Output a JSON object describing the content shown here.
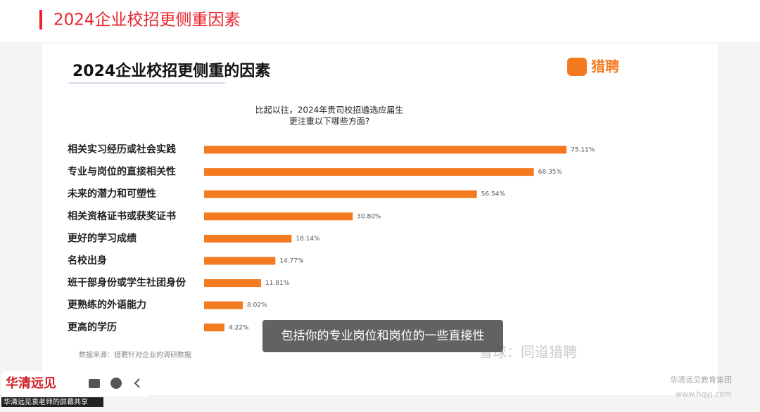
{
  "header": {
    "title": "2024企业校招更侧重因素"
  },
  "chart_data": {
    "type": "hbar",
    "title": "2024企业校招更侧重的因素",
    "question": [
      "比起以往，2024年贵司校招遴选应届生",
      "更注重以下哪些方面?"
    ],
    "categories": [
      "相关实习经历或社会实践",
      "专业与岗位的直接相关性",
      "未来的潜力和可塑性",
      "相关资格证书或获奖证书",
      "更好的学习成绩",
      "名校出身",
      "班干部身份或学生社团身份",
      "更熟练的外语能力",
      "更高的学历"
    ],
    "values": [
      75.11,
      68.35,
      56.54,
      30.8,
      18.14,
      14.77,
      11.81,
      8.02,
      4.22
    ],
    "value_labels": [
      "75.11%",
      "68.35%",
      "56.54%",
      "30.80%",
      "18.14%",
      "14.77%",
      "11.81%",
      "8.02%",
      "4.22%"
    ],
    "color": "#f47a20",
    "source": "数据来源：猎聘针对企业的调研数据"
  },
  "slide": {
    "logo": "猎聘",
    "watermark": "雪球：同道猎聘",
    "org": "华清远见教育集团",
    "url": "www.hqyj.com"
  },
  "caption": "包括你的专业岗位和岗位的一些直接性",
  "toolbar": {
    "brand": "华清远见",
    "share": "华清远见袁老师的屏幕共享"
  }
}
